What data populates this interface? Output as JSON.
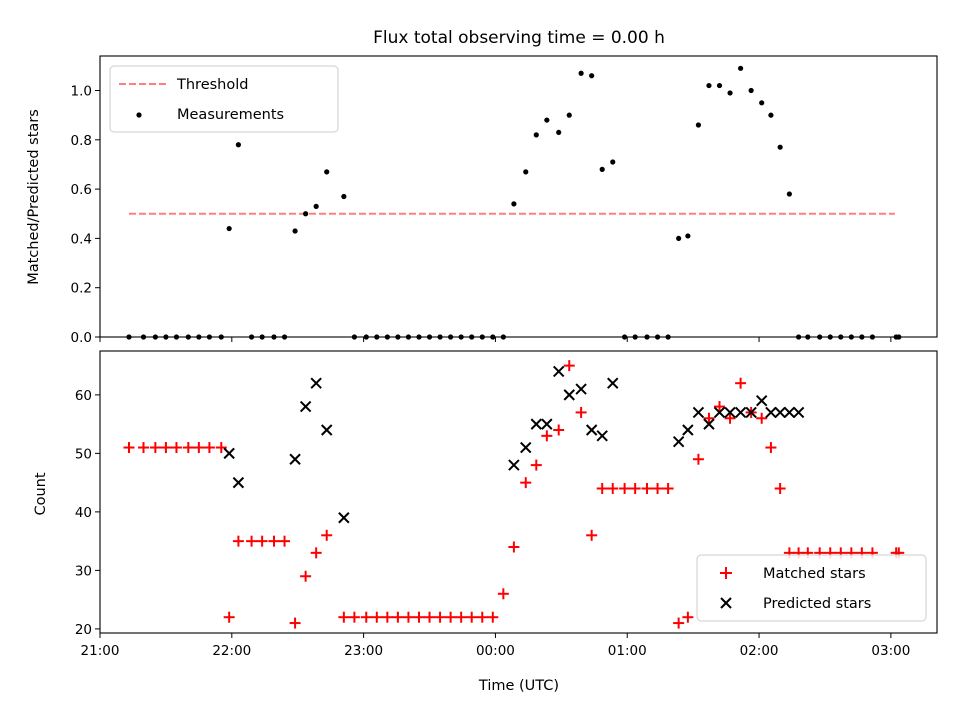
{
  "chart_data": [
    {
      "type": "scatter",
      "title": "Flux total observing time = 0.00 h",
      "xlabel": "",
      "ylabel": "Matched/Predicted stars",
      "ylim": [
        0,
        1.14
      ],
      "yticks": [
        0.0,
        0.2,
        0.4,
        0.6,
        0.8,
        1.0
      ],
      "ytick_labels": [
        "0.0",
        "0.2",
        "0.4",
        "0.6",
        "0.8",
        "1.0"
      ],
      "xlim": [
        21.0,
        27.35
      ],
      "xticks": [
        21,
        22,
        23,
        24,
        25,
        26,
        27
      ],
      "grid": false,
      "legend_position": "top-left",
      "threshold": {
        "name": "Threshold",
        "y": 0.5,
        "x_range": [
          21.22,
          27.03
        ],
        "color": "#ff7f7f",
        "style": "dashed"
      },
      "series": [
        {
          "name": "Measurements",
          "color": "#000000",
          "marker": "dot",
          "x": [
            21.22,
            21.33,
            21.42,
            21.5,
            21.58,
            21.67,
            21.75,
            21.83,
            21.92,
            21.98,
            22.05,
            22.15,
            22.23,
            22.32,
            22.4,
            22.48,
            22.56,
            22.64,
            22.72,
            22.85,
            22.93,
            23.02,
            23.1,
            23.18,
            23.26,
            23.34,
            23.42,
            23.5,
            23.58,
            23.66,
            23.74,
            23.82,
            23.9,
            23.98,
            24.06,
            24.14,
            24.23,
            24.31,
            24.39,
            24.48,
            24.56,
            24.65,
            24.73,
            24.81,
            24.89,
            24.98,
            25.06,
            25.15,
            25.23,
            25.31,
            25.39,
            25.46,
            25.54,
            25.62,
            25.7,
            25.78,
            25.86,
            25.94,
            26.02,
            26.09,
            26.16,
            26.23,
            26.3,
            26.37,
            26.46,
            26.54,
            26.62,
            26.7,
            26.78,
            26.86,
            27.04,
            27.06
          ],
          "y": [
            0,
            0,
            0,
            0,
            0,
            0,
            0,
            0,
            0,
            0.44,
            0.78,
            0,
            0,
            0,
            0,
            0.43,
            0.5,
            0.53,
            0.67,
            0.57,
            0,
            0,
            0,
            0,
            0,
            0,
            0,
            0,
            0,
            0,
            0,
            0,
            0,
            0,
            0,
            0.54,
            0.67,
            0.82,
            0.88,
            0.83,
            0.9,
            1.07,
            1.06,
            0.68,
            0.71,
            0,
            0,
            0,
            0,
            0,
            0.4,
            0.41,
            0.86,
            1.02,
            1.02,
            0.99,
            1.09,
            1.0,
            0.95,
            0.9,
            0.77,
            0.58,
            0,
            0,
            0,
            0,
            0,
            0,
            0,
            0,
            0,
            0
          ]
        }
      ]
    },
    {
      "type": "scatter",
      "title": "",
      "xlabel": "Time (UTC)",
      "ylabel": "Count",
      "ylim": [
        19.3,
        67.5
      ],
      "yticks": [
        20,
        30,
        40,
        50,
        60
      ],
      "ytick_labels": [
        "20",
        "30",
        "40",
        "50",
        "60"
      ],
      "xlim": [
        21.0,
        27.35
      ],
      "xticks": [
        21,
        22,
        23,
        24,
        25,
        26,
        27
      ],
      "xtick_labels": [
        "21:00",
        "22:00",
        "23:00",
        "00:00",
        "01:00",
        "02:00",
        "03:00"
      ],
      "grid": false,
      "legend_position": "bottom-right",
      "series": [
        {
          "name": "Matched stars",
          "color": "#ff0000",
          "marker": "plus",
          "x": [
            21.22,
            21.33,
            21.42,
            21.5,
            21.58,
            21.67,
            21.75,
            21.83,
            21.92,
            21.98,
            22.05,
            22.15,
            22.23,
            22.32,
            22.4,
            22.48,
            22.56,
            22.64,
            22.72,
            22.85,
            22.93,
            23.02,
            23.1,
            23.18,
            23.26,
            23.34,
            23.42,
            23.5,
            23.58,
            23.66,
            23.74,
            23.82,
            23.9,
            23.98,
            24.06,
            24.14,
            24.23,
            24.31,
            24.39,
            24.48,
            24.56,
            24.65,
            24.73,
            24.81,
            24.89,
            24.98,
            25.06,
            25.15,
            25.23,
            25.31,
            25.39,
            25.46,
            25.54,
            25.62,
            25.7,
            25.78,
            25.86,
            25.94,
            26.02,
            26.09,
            26.16,
            26.23,
            26.3,
            26.37,
            26.46,
            26.54,
            26.62,
            26.7,
            26.78,
            26.86,
            27.04,
            27.06
          ],
          "y": [
            51,
            51,
            51,
            51,
            51,
            51,
            51,
            51,
            51,
            22,
            35,
            35,
            35,
            35,
            35,
            21,
            29,
            33,
            36,
            22,
            22,
            22,
            22,
            22,
            22,
            22,
            22,
            22,
            22,
            22,
            22,
            22,
            22,
            22,
            26,
            34,
            45,
            48,
            53,
            54,
            65,
            57,
            36,
            44,
            44,
            44,
            44,
            44,
            44,
            44,
            21,
            22,
            49,
            56,
            58,
            56,
            62,
            57,
            56,
            51,
            44,
            33,
            33,
            33,
            33,
            33,
            33,
            33,
            33,
            33,
            33,
            33
          ]
        },
        {
          "name": "Predicted stars",
          "color": "#000000",
          "marker": "x",
          "x": [
            21.98,
            22.05,
            22.48,
            22.56,
            22.64,
            22.72,
            22.85,
            24.14,
            24.23,
            24.31,
            24.39,
            24.48,
            24.56,
            24.65,
            24.73,
            24.81,
            24.89,
            25.39,
            25.46,
            25.54,
            25.62,
            25.7,
            25.78,
            25.86,
            25.94,
            26.02,
            26.09,
            26.16,
            26.23,
            26.3
          ],
          "y": [
            50,
            45,
            49,
            58,
            62,
            54,
            39,
            48,
            51,
            55,
            55,
            64,
            60,
            61,
            54,
            53,
            62,
            52,
            54,
            57,
            55,
            57,
            57,
            57,
            57,
            59,
            57,
            57,
            57,
            57
          ]
        }
      ]
    }
  ]
}
